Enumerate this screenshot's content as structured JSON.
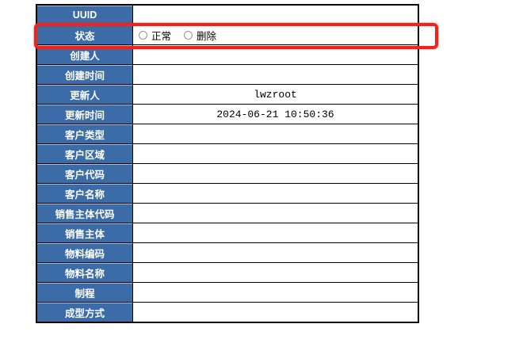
{
  "form": {
    "rows": [
      {
        "label": "UUID",
        "value": ""
      },
      {
        "label": "状态",
        "value": "",
        "radios": [
          {
            "label": "正常",
            "checked": false
          },
          {
            "label": "删除",
            "checked": false
          }
        ]
      },
      {
        "label": "创建人",
        "value": ""
      },
      {
        "label": "创建时间",
        "value": ""
      },
      {
        "label": "更新人",
        "value": "lwzroot"
      },
      {
        "label": "更新时间",
        "value": "2024-06-21 10:50:36"
      },
      {
        "label": "客户类型",
        "value": ""
      },
      {
        "label": "客户区域",
        "value": ""
      },
      {
        "label": "客户代码",
        "value": ""
      },
      {
        "label": "客户名称",
        "value": ""
      },
      {
        "label": "销售主体代码",
        "value": ""
      },
      {
        "label": "销售主体",
        "value": ""
      },
      {
        "label": "物料编码",
        "value": ""
      },
      {
        "label": "物料名称",
        "value": ""
      },
      {
        "label": "制程",
        "value": ""
      },
      {
        "label": "成型方式",
        "value": ""
      }
    ],
    "status_radio_names": [
      "status-radio-normal",
      "status-radio-delete"
    ]
  },
  "annotation": {
    "type": "highlight-rectangle",
    "target_row": "状态"
  },
  "colors": {
    "label_bg": "#3b6ca8",
    "border": "#000000",
    "highlight": "#f2221a"
  }
}
